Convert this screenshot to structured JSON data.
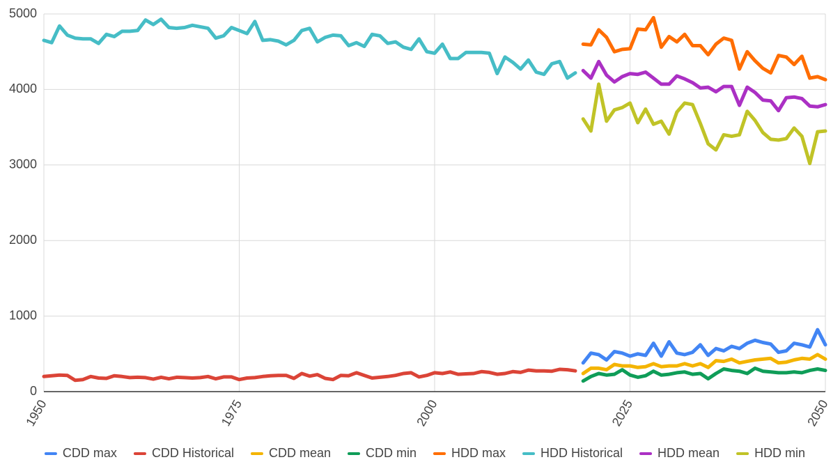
{
  "chart_data": {
    "type": "line",
    "x": [
      1950,
      1951,
      1952,
      1953,
      1954,
      1955,
      1956,
      1957,
      1958,
      1959,
      1960,
      1961,
      1962,
      1963,
      1964,
      1965,
      1966,
      1967,
      1968,
      1969,
      1970,
      1971,
      1972,
      1973,
      1974,
      1975,
      1976,
      1977,
      1978,
      1979,
      1980,
      1981,
      1982,
      1983,
      1984,
      1985,
      1986,
      1987,
      1988,
      1989,
      1990,
      1991,
      1992,
      1993,
      1994,
      1995,
      1996,
      1997,
      1998,
      1999,
      2000,
      2001,
      2002,
      2003,
      2004,
      2005,
      2006,
      2007,
      2008,
      2009,
      2010,
      2011,
      2012,
      2013,
      2014,
      2015,
      2016,
      2017,
      2018,
      2019,
      2020,
      2021,
      2022,
      2023,
      2024,
      2025,
      2026,
      2027,
      2028,
      2029,
      2030,
      2031,
      2032,
      2033,
      2034,
      2035,
      2036,
      2037,
      2038,
      2039,
      2040,
      2041,
      2042,
      2043,
      2044,
      2045,
      2046,
      2047,
      2048,
      2049,
      2050
    ],
    "xlim": [
      1950,
      2050
    ],
    "xticks": [
      1950,
      1975,
      2000,
      2025,
      2050
    ],
    "ylim": [
      0,
      5000
    ],
    "yticks": [
      0,
      1000,
      2000,
      3000,
      4000,
      5000
    ],
    "grid": true,
    "legend": "bottom",
    "series": [
      {
        "name": "CDD max",
        "color": "#4285f4",
        "values": [
          null,
          null,
          null,
          null,
          null,
          null,
          null,
          null,
          null,
          null,
          null,
          null,
          null,
          null,
          null,
          null,
          null,
          null,
          null,
          null,
          null,
          null,
          null,
          null,
          null,
          null,
          null,
          null,
          null,
          null,
          null,
          null,
          null,
          null,
          null,
          null,
          null,
          null,
          null,
          null,
          null,
          null,
          null,
          null,
          null,
          null,
          null,
          null,
          null,
          null,
          null,
          null,
          null,
          null,
          null,
          null,
          null,
          null,
          null,
          null,
          null,
          null,
          null,
          null,
          null,
          null,
          null,
          null,
          null,
          380,
          510,
          490,
          420,
          530,
          510,
          470,
          500,
          480,
          640,
          470,
          660,
          510,
          490,
          520,
          620,
          480,
          570,
          540,
          600,
          570,
          640,
          680,
          650,
          630,
          520,
          540,
          640,
          620,
          590,
          820,
          620
        ]
      },
      {
        "name": "CDD Historical",
        "color": "#db4437",
        "values": [
          200,
          210,
          220,
          215,
          150,
          160,
          200,
          180,
          175,
          210,
          200,
          185,
          190,
          185,
          165,
          190,
          170,
          190,
          185,
          180,
          185,
          200,
          170,
          195,
          195,
          160,
          180,
          185,
          200,
          210,
          215,
          215,
          175,
          240,
          205,
          225,
          175,
          160,
          215,
          210,
          250,
          215,
          180,
          190,
          200,
          215,
          240,
          250,
          195,
          215,
          250,
          240,
          260,
          230,
          235,
          240,
          265,
          255,
          230,
          240,
          265,
          255,
          285,
          275,
          275,
          270,
          295,
          290,
          275,
          null,
          null,
          null,
          null,
          null,
          null,
          null,
          null,
          null,
          null,
          null,
          null,
          null,
          null,
          null,
          null,
          null,
          null,
          null,
          null,
          null,
          null,
          null,
          null,
          null,
          null,
          null,
          null,
          null,
          null,
          null,
          null
        ]
      },
      {
        "name": "CDD mean",
        "color": "#f4b400",
        "values": [
          null,
          null,
          null,
          null,
          null,
          null,
          null,
          null,
          null,
          null,
          null,
          null,
          null,
          null,
          null,
          null,
          null,
          null,
          null,
          null,
          null,
          null,
          null,
          null,
          null,
          null,
          null,
          null,
          null,
          null,
          null,
          null,
          null,
          null,
          null,
          null,
          null,
          null,
          null,
          null,
          null,
          null,
          null,
          null,
          null,
          null,
          null,
          null,
          null,
          null,
          null,
          null,
          null,
          null,
          null,
          null,
          null,
          null,
          null,
          null,
          null,
          null,
          null,
          null,
          null,
          null,
          null,
          null,
          null,
          240,
          310,
          310,
          290,
          360,
          340,
          340,
          320,
          330,
          370,
          330,
          340,
          340,
          370,
          340,
          370,
          320,
          410,
          400,
          430,
          380,
          400,
          420,
          430,
          440,
          380,
          390,
          420,
          440,
          430,
          490,
          430
        ]
      },
      {
        "name": "CDD min",
        "color": "#0f9d58",
        "values": [
          null,
          null,
          null,
          null,
          null,
          null,
          null,
          null,
          null,
          null,
          null,
          null,
          null,
          null,
          null,
          null,
          null,
          null,
          null,
          null,
          null,
          null,
          null,
          null,
          null,
          null,
          null,
          null,
          null,
          null,
          null,
          null,
          null,
          null,
          null,
          null,
          null,
          null,
          null,
          null,
          null,
          null,
          null,
          null,
          null,
          null,
          null,
          null,
          null,
          null,
          null,
          null,
          null,
          null,
          null,
          null,
          null,
          null,
          null,
          null,
          null,
          null,
          null,
          null,
          null,
          null,
          null,
          null,
          null,
          140,
          200,
          240,
          220,
          230,
          290,
          220,
          190,
          210,
          270,
          220,
          230,
          250,
          260,
          230,
          240,
          170,
          240,
          300,
          280,
          270,
          240,
          310,
          270,
          260,
          250,
          250,
          260,
          250,
          280,
          300,
          280
        ]
      },
      {
        "name": "HDD max",
        "color": "#ff6d01",
        "values": [
          null,
          null,
          null,
          null,
          null,
          null,
          null,
          null,
          null,
          null,
          null,
          null,
          null,
          null,
          null,
          null,
          null,
          null,
          null,
          null,
          null,
          null,
          null,
          null,
          null,
          null,
          null,
          null,
          null,
          null,
          null,
          null,
          null,
          null,
          null,
          null,
          null,
          null,
          null,
          null,
          null,
          null,
          null,
          null,
          null,
          null,
          null,
          null,
          null,
          null,
          null,
          null,
          null,
          null,
          null,
          null,
          null,
          null,
          null,
          null,
          null,
          null,
          null,
          null,
          null,
          null,
          null,
          null,
          null,
          4600,
          4590,
          4790,
          4690,
          4500,
          4530,
          4540,
          4800,
          4790,
          4950,
          4560,
          4700,
          4630,
          4730,
          4580,
          4580,
          4460,
          4600,
          4680,
          4650,
          4270,
          4500,
          4380,
          4280,
          4220,
          4450,
          4430,
          4330,
          4440,
          4150,
          4170,
          4130
        ]
      },
      {
        "name": "HDD Historical",
        "color": "#46bdc6",
        "values": [
          4650,
          4620,
          4840,
          4720,
          4680,
          4670,
          4670,
          4610,
          4730,
          4700,
          4770,
          4770,
          4780,
          4920,
          4860,
          4930,
          4820,
          4810,
          4820,
          4850,
          4830,
          4810,
          4680,
          4710,
          4820,
          4780,
          4740,
          4900,
          4650,
          4660,
          4640,
          4590,
          4650,
          4780,
          4810,
          4630,
          4690,
          4720,
          4710,
          4580,
          4620,
          4570,
          4730,
          4710,
          4610,
          4630,
          4560,
          4530,
          4670,
          4500,
          4480,
          4600,
          4410,
          4410,
          4490,
          4490,
          4490,
          4480,
          4210,
          4430,
          4360,
          4270,
          4390,
          4230,
          4200,
          4340,
          4370,
          4150,
          4220,
          null,
          null,
          null,
          null,
          null,
          null,
          null,
          null,
          null,
          null,
          null,
          null,
          null,
          null,
          null,
          null,
          null,
          null,
          null,
          null,
          null,
          null,
          null,
          null,
          null,
          null,
          null,
          null,
          null,
          null,
          null,
          null
        ]
      },
      {
        "name": "HDD mean",
        "color": "#ab30c4",
        "values": [
          null,
          null,
          null,
          null,
          null,
          null,
          null,
          null,
          null,
          null,
          null,
          null,
          null,
          null,
          null,
          null,
          null,
          null,
          null,
          null,
          null,
          null,
          null,
          null,
          null,
          null,
          null,
          null,
          null,
          null,
          null,
          null,
          null,
          null,
          null,
          null,
          null,
          null,
          null,
          null,
          null,
          null,
          null,
          null,
          null,
          null,
          null,
          null,
          null,
          null,
          null,
          null,
          null,
          null,
          null,
          null,
          null,
          null,
          null,
          null,
          null,
          null,
          null,
          null,
          null,
          null,
          null,
          null,
          null,
          4250,
          4150,
          4370,
          4190,
          4100,
          4170,
          4210,
          4200,
          4230,
          4150,
          4070,
          4070,
          4180,
          4140,
          4090,
          4020,
          4030,
          3970,
          4040,
          4040,
          3790,
          4030,
          3960,
          3860,
          3850,
          3720,
          3890,
          3900,
          3880,
          3780,
          3770,
          3800
        ]
      },
      {
        "name": "HDD min",
        "color": "#c0c327",
        "values": [
          null,
          null,
          null,
          null,
          null,
          null,
          null,
          null,
          null,
          null,
          null,
          null,
          null,
          null,
          null,
          null,
          null,
          null,
          null,
          null,
          null,
          null,
          null,
          null,
          null,
          null,
          null,
          null,
          null,
          null,
          null,
          null,
          null,
          null,
          null,
          null,
          null,
          null,
          null,
          null,
          null,
          null,
          null,
          null,
          null,
          null,
          null,
          null,
          null,
          null,
          null,
          null,
          null,
          null,
          null,
          null,
          null,
          null,
          null,
          null,
          null,
          null,
          null,
          null,
          null,
          null,
          null,
          null,
          null,
          3610,
          3450,
          4070,
          3580,
          3730,
          3760,
          3820,
          3560,
          3740,
          3540,
          3580,
          3410,
          3700,
          3820,
          3800,
          3550,
          3280,
          3200,
          3400,
          3380,
          3400,
          3710,
          3590,
          3430,
          3340,
          3330,
          3350,
          3490,
          3380,
          3020,
          3440,
          3450
        ]
      }
    ]
  }
}
